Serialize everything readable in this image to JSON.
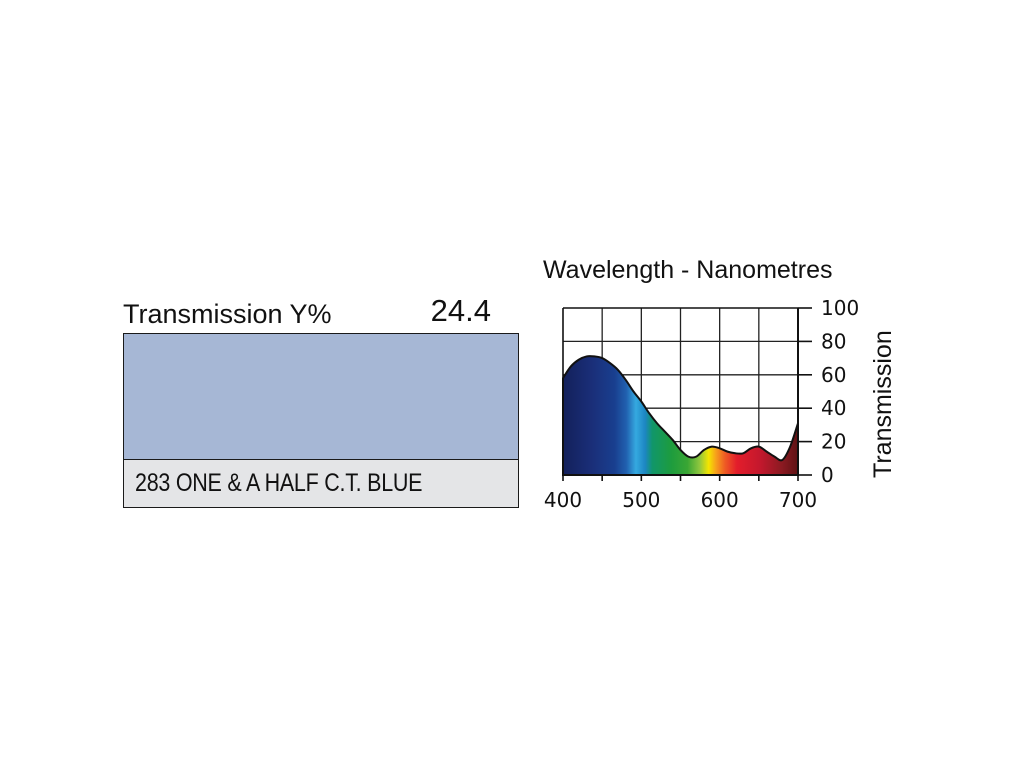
{
  "swatch": {
    "transmission_label": "Transmission Y%",
    "transmission_value": "24.4",
    "name": "283 ONE & A HALF C.T. BLUE",
    "fill_color": "#a6b7d5"
  },
  "chart_data": {
    "type": "area",
    "title": "Wavelength - Nanometres",
    "xlabel": "",
    "ylabel": "Transmission",
    "xlim": [
      400,
      700
    ],
    "ylim": [
      0,
      100
    ],
    "x_ticks": [
      "400",
      "500",
      "600",
      "700"
    ],
    "y_ticks": [
      "0",
      "20",
      "40",
      "60",
      "80",
      "100"
    ],
    "grid": true,
    "fill": "visible spectrum gradient",
    "series": [
      {
        "x": [
          400,
          410,
          420,
          430,
          440,
          450,
          460,
          470,
          480,
          490,
          500,
          510,
          520,
          530,
          540,
          550,
          560,
          570,
          580,
          590,
          600,
          610,
          620,
          630,
          640,
          650,
          660,
          670,
          680,
          690,
          700
        ],
        "y": [
          58,
          65,
          69,
          71,
          71,
          70,
          67,
          63,
          57,
          50,
          44,
          37,
          31,
          26,
          21,
          15,
          11,
          11,
          15,
          17,
          16,
          14,
          13,
          13,
          16,
          17,
          14,
          11,
          9,
          17,
          31
        ]
      }
    ]
  }
}
